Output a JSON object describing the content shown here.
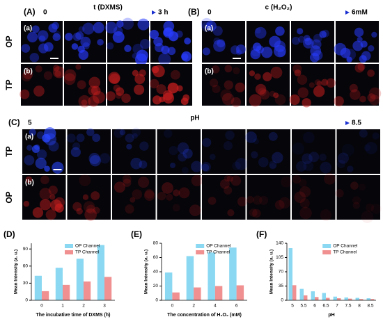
{
  "panels": [
    {
      "label": "(A)",
      "start": "0",
      "end": "3 h",
      "variable": "t (DXMS)",
      "rows": [
        "OP",
        "TP"
      ],
      "sub": [
        "(a)",
        "(b)"
      ]
    },
    {
      "label": "(B)",
      "start": "0",
      "end": "6mM",
      "variable": "c (H₂O₂)",
      "rows": [
        "",
        ""
      ],
      "sub": [
        "(a)",
        "(b)"
      ]
    },
    {
      "label": "(C)",
      "start": "5",
      "end": "8.5",
      "variable": "pH",
      "rows": [
        "TP",
        "OP"
      ],
      "sub": [
        "(a)",
        "(b)"
      ]
    }
  ],
  "chart_data": [
    {
      "type": "bar",
      "label": "(D)",
      "x_label": "The incubative time of DXMS (h)",
      "y_label": "Mean Intensity (a. u.)",
      "categories": [
        "0",
        "1",
        "2",
        "3"
      ],
      "series": [
        {
          "name": "OP Channel",
          "color": "#8ad8f2",
          "values": [
            43,
            57,
            73,
            97
          ]
        },
        {
          "name": "TP Channel",
          "color": "#f09090",
          "values": [
            16,
            27,
            33,
            41
          ]
        }
      ],
      "ylim": [
        0,
        100
      ],
      "yticks": [
        0,
        30,
        60,
        90
      ]
    },
    {
      "type": "bar",
      "label": "(E)",
      "x_label": "The concentration of H₂O₂ (mM)",
      "y_label": "Mean Intensity (a. u.)",
      "categories": [
        "0",
        "2",
        "4",
        "6"
      ],
      "series": [
        {
          "name": "OP Channel",
          "color": "#8ad8f2",
          "values": [
            39,
            62,
            67,
            74
          ]
        },
        {
          "name": "TP Channel",
          "color": "#f09090",
          "values": [
            11,
            18,
            20,
            21
          ]
        }
      ],
      "ylim": [
        0,
        80
      ],
      "yticks": [
        0,
        20,
        40,
        60,
        80
      ]
    },
    {
      "type": "bar",
      "label": "(F)",
      "x_label": "pH",
      "y_label": "Mean Intensity (a. u.)",
      "categories": [
        "5",
        "5.5",
        "6",
        "6.5",
        "7",
        "7.5",
        "8",
        "8.5"
      ],
      "series": [
        {
          "name": "OP Channel",
          "color": "#8ad8f2",
          "values": [
            128,
            28,
            22,
            18,
            9,
            7,
            6,
            5
          ]
        },
        {
          "name": "TP Channel",
          "color": "#f09090",
          "values": [
            37,
            12,
            8,
            6,
            5,
            4,
            3,
            3
          ]
        }
      ],
      "ylim": [
        0,
        140
      ],
      "yticks": [
        0,
        35,
        70,
        105,
        140
      ]
    }
  ]
}
